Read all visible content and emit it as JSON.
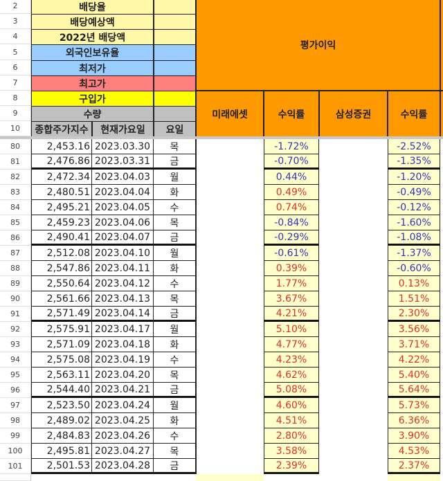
{
  "header_rows": [
    {
      "row": "2",
      "label": "배당율",
      "color": "#fff8a8"
    },
    {
      "row": "3",
      "label": "배당예상액",
      "color": "#fff8a8"
    },
    {
      "row": "4",
      "label": "2022년 배당액",
      "color": "#fff8a8"
    },
    {
      "row": "5",
      "label": "외국인보유율",
      "color": "#99ccff"
    },
    {
      "row": "6",
      "label": "최저가",
      "color": "#99ccff"
    },
    {
      "row": "7",
      "label": "최고가",
      "color": "#ff7f7f"
    },
    {
      "row": "8",
      "label": "구입가",
      "color": "#ffff00"
    },
    {
      "row": "9",
      "label": "수량",
      "color": "#c0c0c0"
    }
  ],
  "row10": {
    "row": "10",
    "col_a": "종합주가지수",
    "col_b": "현재가요일",
    "col_c": "요일"
  },
  "eval_title": "평가이익",
  "col_headers": [
    "미래에셋",
    "수익률",
    "삼성증권",
    "수익률"
  ],
  "colors": {
    "orange": "#ff9900",
    "pct_bg": "#ffffcc",
    "positive": "#e0302a",
    "negative": "#3333bb"
  },
  "rows": [
    {
      "row": "80",
      "index": "2,453.16",
      "date": "2023.03.30",
      "day": "목",
      "r1": "-1.72%",
      "r2": "-2.52%"
    },
    {
      "row": "81",
      "index": "2,476.86",
      "date": "2023.03.31",
      "day": "금",
      "r1": "-0.70%",
      "r2": "-1.35%"
    },
    {
      "row": "82",
      "index": "2,472.34",
      "date": "2023.04.03",
      "day": "월",
      "r1": "0.44%",
      "r2": "-1.20%",
      "r1_color": "negative"
    },
    {
      "row": "83",
      "index": "2,480.51",
      "date": "2023.04.04",
      "day": "화",
      "r1": "0.49%",
      "r2": "-0.49%"
    },
    {
      "row": "84",
      "index": "2,495.21",
      "date": "2023.04.05",
      "day": "수",
      "r1": "0.74%",
      "r2": "-0.12%"
    },
    {
      "row": "85",
      "index": "2,459.23",
      "date": "2023.04.06",
      "day": "목",
      "r1": "-0.84%",
      "r2": "-1.60%"
    },
    {
      "row": "86",
      "index": "2,490.41",
      "date": "2023.04.07",
      "day": "금",
      "r1": "-0.29%",
      "r2": "-1.08%"
    },
    {
      "row": "87",
      "index": "2,512.08",
      "date": "2023.04.10",
      "day": "월",
      "r1": "-0.61%",
      "r2": "-1.37%"
    },
    {
      "row": "88",
      "index": "2,547.86",
      "date": "2023.04.11",
      "day": "화",
      "r1": "0.39%",
      "r2": "-0.60%"
    },
    {
      "row": "89",
      "index": "2,550.64",
      "date": "2023.04.12",
      "day": "수",
      "r1": "1.77%",
      "r2": "0.13%"
    },
    {
      "row": "90",
      "index": "2,561.66",
      "date": "2023.04.13",
      "day": "목",
      "r1": "3.67%",
      "r2": "1.51%"
    },
    {
      "row": "91",
      "index": "2,571.49",
      "date": "2023.04.14",
      "day": "금",
      "r1": "4.21%",
      "r2": "2.30%"
    },
    {
      "row": "92",
      "index": "2,575.91",
      "date": "2023.04.17",
      "day": "월",
      "r1": "5.10%",
      "r2": "3.56%"
    },
    {
      "row": "93",
      "index": "2,571.09",
      "date": "2023.04.18",
      "day": "화",
      "r1": "4.77%",
      "r2": "3.71%"
    },
    {
      "row": "94",
      "index": "2,575.08",
      "date": "2023.04.19",
      "day": "수",
      "r1": "4.23%",
      "r2": "4.22%"
    },
    {
      "row": "95",
      "index": "2,563.11",
      "date": "2023.04.20",
      "day": "목",
      "r1": "4.62%",
      "r2": "5.40%"
    },
    {
      "row": "96",
      "index": "2,544.40",
      "date": "2023.04.21",
      "day": "금",
      "r1": "5.08%",
      "r2": "5.64%"
    },
    {
      "row": "97",
      "index": "2,523.50",
      "date": "2023.04.24",
      "day": "월",
      "r1": "4.60%",
      "r2": "5.73%"
    },
    {
      "row": "98",
      "index": "2,489.02",
      "date": "2023.04.25",
      "day": "화",
      "r1": "4.51%",
      "r2": "6.36%"
    },
    {
      "row": "99",
      "index": "2,484.83",
      "date": "2023.04.26",
      "day": "수",
      "r1": "2.80%",
      "r2": "3.90%"
    },
    {
      "row": "100",
      "index": "2,495.81",
      "date": "2023.04.27",
      "day": "목",
      "r1": "3.58%",
      "r2": "4.53%"
    },
    {
      "row": "101",
      "index": "2,501.53",
      "date": "2023.04.28",
      "day": "금",
      "r1": "2.39%",
      "r2": "2.37%"
    }
  ]
}
